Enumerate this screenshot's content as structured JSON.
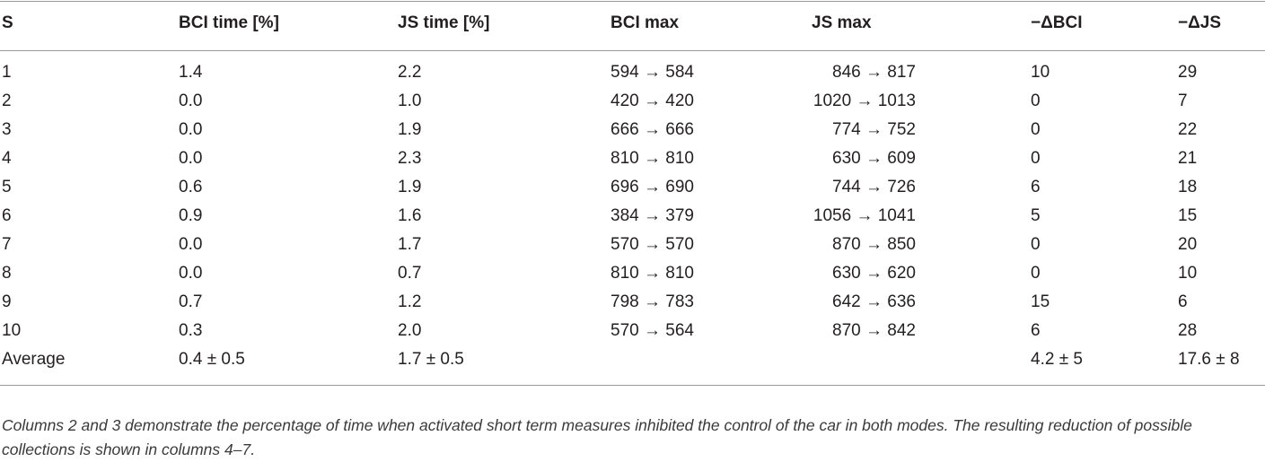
{
  "table": {
    "headers": [
      "S",
      "BCI time [%]",
      "JS time [%]",
      "BCI max",
      "JS max",
      "−ΔBCI",
      "−ΔJS"
    ],
    "rows": [
      [
        "1",
        "1.4",
        "2.2",
        "594 → 584",
        "846 → 817",
        "10",
        "29"
      ],
      [
        "2",
        "0.0",
        "1.0",
        "420 → 420",
        "1020 → 1013",
        "0",
        "7"
      ],
      [
        "3",
        "0.0",
        "1.9",
        "666 → 666",
        "774 → 752",
        "0",
        "22"
      ],
      [
        "4",
        "0.0",
        "2.3",
        "810 → 810",
        "630 → 609",
        "0",
        "21"
      ],
      [
        "5",
        "0.6",
        "1.9",
        "696 → 690",
        "744 → 726",
        "6",
        "18"
      ],
      [
        "6",
        "0.9",
        "1.6",
        "384 → 379",
        "1056 → 1041",
        "5",
        "15"
      ],
      [
        "7",
        "0.0",
        "1.7",
        "570 → 570",
        "870 → 850",
        "0",
        "20"
      ],
      [
        "8",
        "0.0",
        "0.7",
        "810 → 810",
        "630 → 620",
        "0",
        "10"
      ],
      [
        "9",
        "0.7",
        "1.2",
        "798 → 783",
        "642 → 636",
        "15",
        "6"
      ],
      [
        "10",
        "0.3",
        "2.0",
        "570 → 564",
        "870 → 842",
        "6",
        "28"
      ],
      [
        "Average",
        "0.4 ± 0.5",
        "1.7 ± 0.5",
        "",
        "",
        "4.2 ± 5",
        "17.6 ± 8"
      ]
    ]
  },
  "caption": "Columns 2 and 3 demonstrate the percentage of time when activated short term measures inhibited the control of the car in both modes. The resulting reduction of possible collections is shown in columns 4–7."
}
